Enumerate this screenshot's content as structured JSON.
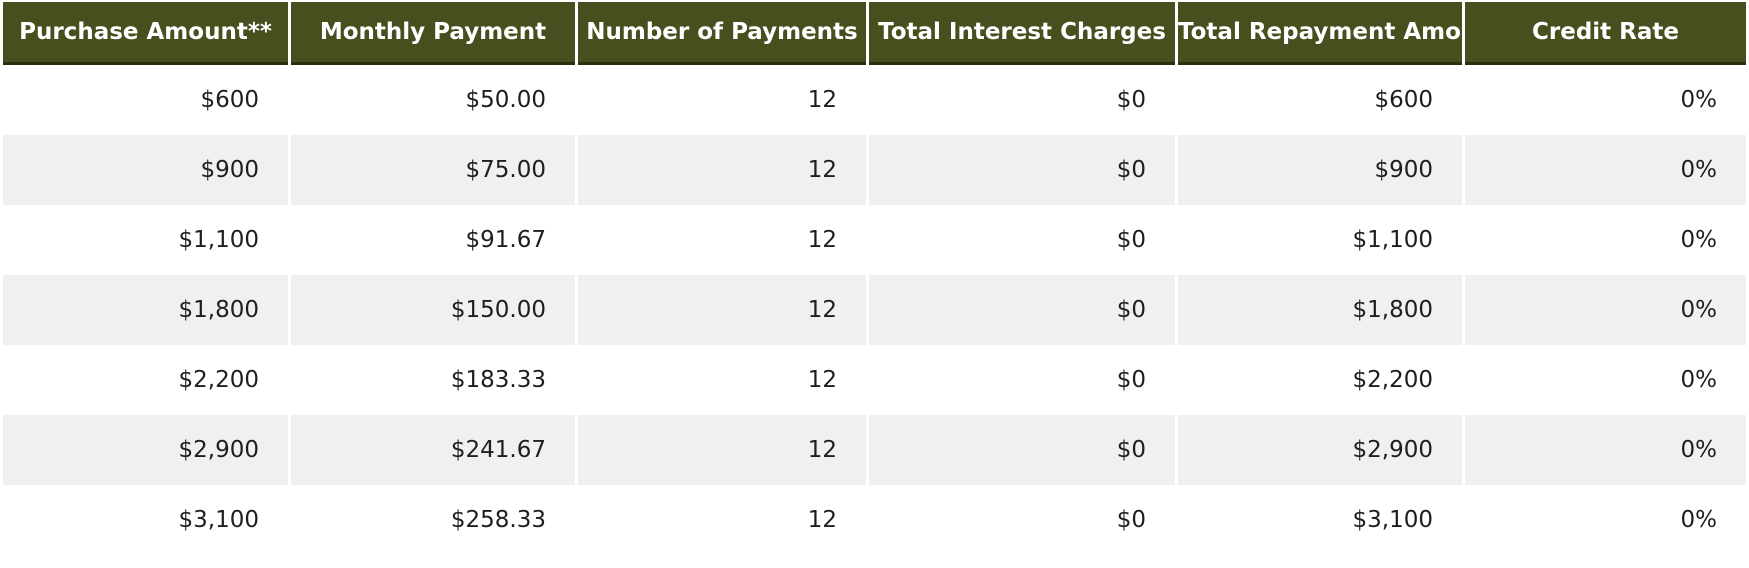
{
  "chart_data": {
    "type": "table",
    "title": "",
    "columns": [
      "Purchase Amount**",
      "Monthly Payment",
      "Number of Payments",
      "Total Interest Charges",
      "Total Repayment Amount",
      "Credit Rate"
    ],
    "rows": [
      [
        "$600",
        "$50.00",
        "12",
        "$0",
        "$600",
        "0%"
      ],
      [
        "$900",
        "$75.00",
        "12",
        "$0",
        "$900",
        "0%"
      ],
      [
        "$1,100",
        "$91.67",
        "12",
        "$0",
        "$1,100",
        "0%"
      ],
      [
        "$1,800",
        "$150.00",
        "12",
        "$0",
        "$1,800",
        "0%"
      ],
      [
        "$2,200",
        "$183.33",
        "12",
        "$0",
        "$2,200",
        "0%"
      ],
      [
        "$2,900",
        "$241.67",
        "12",
        "$0",
        "$2,900",
        "0%"
      ],
      [
        "$3,100",
        "$258.33",
        "12",
        "$0",
        "$3,100",
        "0%"
      ]
    ],
    "layout": {
      "header_align": "center",
      "cell_align": "right",
      "striped": "alternate rows shaded, starting with second data row",
      "grid": "white vertical gutters between columns, no horizontal rules"
    },
    "colors": {
      "header_bg": "#484e1e",
      "header_border": "#2b310e",
      "header_text": "#ffffff",
      "row_bg": "#ffffff",
      "row_alt_bg": "#f0f0f0",
      "cell_text": "#1e1e1e",
      "page_bg": "#ffffff"
    }
  }
}
